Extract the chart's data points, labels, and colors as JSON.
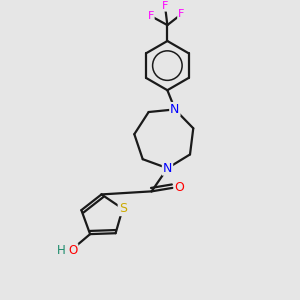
{
  "bg_color": "#e6e6e6",
  "atom_colors": {
    "N": "#0000ff",
    "O": "#ff0000",
    "S": "#ccaa00",
    "F": "#ff00ff"
  },
  "bond_color": "#1a1a1a",
  "bond_width": 1.6
}
